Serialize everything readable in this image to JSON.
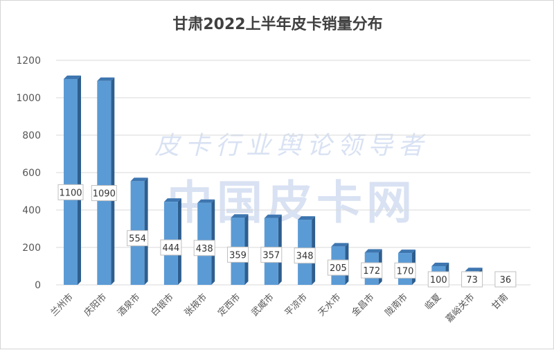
{
  "chart_data": {
    "type": "bar",
    "title": "甘肃2022上半年皮卡销量分布",
    "xlabel": "",
    "ylabel": "",
    "categories": [
      "兰州市",
      "庆阳市",
      "酒泉市",
      "白银市",
      "张掖市",
      "定西市",
      "武威市",
      "平凉市",
      "天水市",
      "金昌市",
      "陇南市",
      "临夏",
      "嘉峪关市",
      "甘南"
    ],
    "values": [
      1100,
      1090,
      554,
      444,
      438,
      359,
      357,
      348,
      205,
      172,
      170,
      100,
      73,
      36
    ],
    "ylim": [
      0,
      1200
    ],
    "yticks": [
      0,
      200,
      400,
      600,
      800,
      1000,
      1200
    ],
    "grid": true,
    "legend": "none",
    "bar_color": "#5b9bd5",
    "bar_side_color": "#2e5e8e",
    "bar_top_color": "#3e76b0"
  },
  "watermark": {
    "line1": "皮卡行业舆论领导者",
    "line2": "中国皮卡网"
  }
}
